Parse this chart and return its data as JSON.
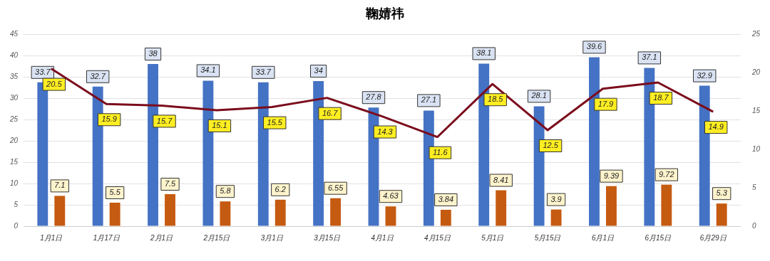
{
  "chart_data": {
    "type": "bar",
    "title": "鞠婧祎",
    "categories": [
      "1月1日",
      "1月17日",
      "2月1日",
      "2月15日",
      "3月1日",
      "3月15日",
      "4月1日",
      "4月15日",
      "5月1日",
      "5月15日",
      "6月1日",
      "6月15日",
      "6月29日"
    ],
    "series": [
      {
        "color": "#4472c4",
        "values": [
          33.7,
          32.7,
          38,
          34.1,
          33.7,
          34,
          27.8,
          27.1,
          38.1,
          28.1,
          39.6,
          37.1,
          32.9
        ]
      },
      {
        "color": "#c55a11",
        "values": [
          7.1,
          5.5,
          7.5,
          5.8,
          6.2,
          6.55,
          4.63,
          3.84,
          8.41,
          3.9,
          9.39,
          9.72,
          5.3
        ]
      },
      {
        "type": "line",
        "axis": "y2",
        "color": "#7b0c1c",
        "values": [
          20.5,
          15.9,
          15.7,
          15.1,
          15.5,
          16.7,
          14.3,
          11.6,
          18.5,
          12.5,
          17.9,
          18.7,
          14.9
        ]
      }
    ],
    "ylim": [
      0,
      45
    ],
    "yticks": [
      0,
      5,
      10,
      15,
      20,
      25,
      30,
      35,
      40,
      45
    ],
    "y2lim": [
      0,
      25
    ],
    "y2ticks": [
      0,
      5,
      10,
      15,
      20,
      25
    ],
    "grid": "y",
    "legend": false,
    "marker": "none",
    "line_style": "solid",
    "data_labels": true
  }
}
